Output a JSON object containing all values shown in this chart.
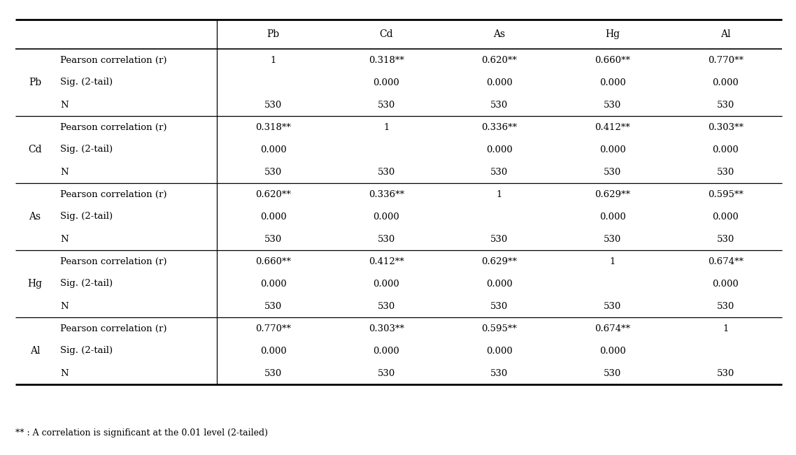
{
  "metals": [
    "Pb",
    "Cd",
    "As",
    "Hg",
    "Al"
  ],
  "col_headers": [
    "Pb",
    "Cd",
    "As",
    "Hg",
    "Al"
  ],
  "row_labels": [
    "Pb",
    "Cd",
    "As",
    "Hg",
    "Al"
  ],
  "row_sublabels": [
    "Pearson correlation (r)",
    "Sig. (2-tail)",
    "N"
  ],
  "table_data": {
    "pearson": [
      [
        "1",
        "0.318**",
        "0.620**",
        "0.660**",
        "0.770**"
      ],
      [
        "0.318**",
        "1",
        "0.336**",
        "0.412**",
        "0.303**"
      ],
      [
        "0.620**",
        "0.336**",
        "1",
        "0.629**",
        "0.595**"
      ],
      [
        "0.660**",
        "0.412**",
        "0.629**",
        "1",
        "0.674**"
      ],
      [
        "0.770**",
        "0.303**",
        "0.595**",
        "0.674**",
        "1"
      ]
    ],
    "sig": [
      [
        "",
        "0.000",
        "0.000",
        "0.000",
        "0.000"
      ],
      [
        "0.000",
        "",
        "0.000",
        "0.000",
        "0.000"
      ],
      [
        "0.000",
        "0.000",
        "",
        "0.000",
        "0.000"
      ],
      [
        "0.000",
        "0.000",
        "0.000",
        "",
        "0.000"
      ],
      [
        "0.000",
        "0.000",
        "0.000",
        "0.000",
        ""
      ]
    ],
    "n": [
      [
        "530",
        "530",
        "530",
        "530",
        "530"
      ],
      [
        "530",
        "530",
        "530",
        "530",
        "530"
      ],
      [
        "530",
        "530",
        "530",
        "530",
        "530"
      ],
      [
        "530",
        "530",
        "530",
        "530",
        "530"
      ],
      [
        "530",
        "530",
        "530",
        "530",
        "530"
      ]
    ]
  },
  "footnote": "** : A correlation is significant at the 0.01 level (2-tailed)",
  "background_color": "#ffffff",
  "text_color": "#000000",
  "font_size": 9.5,
  "header_font_size": 10
}
